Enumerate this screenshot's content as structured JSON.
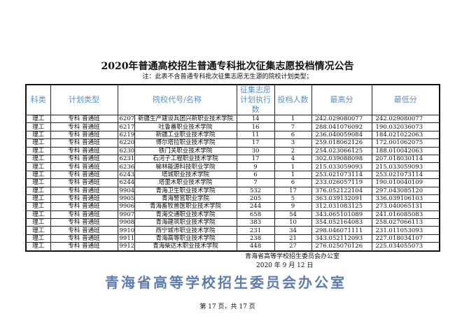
{
  "title": "2020年普通高校招生普通专科批次征集志愿投档情况公告",
  "note": "注：此表不含普通专科批次征集志愿无生源的院校计划类型；",
  "headers": {
    "category": "科类",
    "plan_type": "计划类型",
    "school": "院校代号/名称",
    "plan_count": "征集志愿计划执行数",
    "admitted": "投档人数",
    "max": "最高分",
    "min": "最低分"
  },
  "rows": [
    [
      "理工",
      "专科 普通班",
      "6207",
      "新疆生产建设兵团兴新职业技术学院",
      "14",
      "1",
      "242.029080077",
      "242.029080077"
    ],
    [
      "理工",
      "专科 普通班",
      "6217",
      "吐鲁番职业技术学院",
      "16",
      "7",
      "288.041076092",
      "190.032036073"
    ],
    [
      "理工",
      "专科 普通班",
      "6219",
      "新疆工业职业技术学院",
      "11",
      "6",
      "236.040059084",
      "184.021022063"
    ],
    [
      "理工",
      "专科 普通班",
      "6220",
      "博尔塔拉职业技术学院",
      "17",
      "3",
      "259.018062126",
      "172.001062075"
    ],
    [
      "理工",
      "专科 普通班",
      "6230",
      "铁门关职业技术学院",
      "30",
      "2",
      "254.023066125",
      "188.010042063"
    ],
    [
      "理工",
      "专科 普通班",
      "6231",
      "石河子工程职业技术学院",
      "17",
      "4",
      "302.039088098",
      "207.018030114"
    ],
    [
      "理工",
      "专科 普通班",
      "6236",
      "榆林能源科技职业学院",
      "9",
      "1",
      "215.033059093",
      "215.033059093"
    ],
    [
      "理工",
      "专科 普通班",
      "6243",
      "塔城职业技术学院",
      "6",
      "1",
      "253.021073114",
      "253.021073114"
    ],
    [
      "理工",
      "专科 普通班",
      "6244",
      "塔里木职业技术学院",
      "7",
      "6",
      "233.026057119",
      "190.010040109"
    ],
    [
      "理工",
      "专科 普通班",
      "9904",
      "青海卫生职业技术学院",
      "532",
      "17",
      "376.052122104",
      "297.043085120"
    ],
    [
      "理工",
      "专科 普通班",
      "9905",
      "青海警官职业学院",
      "205",
      "5",
      "363.039132091",
      "336.039106103"
    ],
    [
      "理工",
      "专科 普通班",
      "9906",
      "青海畜牧兽医职业技术学院",
      "244",
      "9",
      "312.031083125",
      "273.040065131"
    ],
    [
      "理工",
      "专科 普通班",
      "9907",
      "青海交通职业技术学院",
      "658",
      "54",
      "343.065101089",
      "241.016085083"
    ],
    [
      "理工",
      "专科 普通班",
      "9908",
      "青海建筑职业技术学院",
      "383",
      "10",
      "354.052164083",
      "258.027066113"
    ],
    [
      "理工",
      "专科 普通班",
      "9910",
      "西宁城市职业技术学院",
      "231",
      "34",
      "298.046071111",
      "231.011053093"
    ],
    [
      "理工",
      "专科 普通班",
      "9911",
      "青海高等职业技术学院",
      "238",
      "21",
      "343.052112093",
      "227.018034107"
    ],
    [
      "理工",
      "专科 普通班",
      "9912",
      "青海柴达木职业技术学院",
      "448",
      "27",
      "276.025070126",
      "225.034055073"
    ]
  ],
  "footer": {
    "org": "青海省高等学校招生委员会办公室",
    "date": "2020 年 9 月 12 日"
  },
  "page": "第 17 页，共 17 页",
  "watermark": "青海省高等学校招生委员会办公室"
}
